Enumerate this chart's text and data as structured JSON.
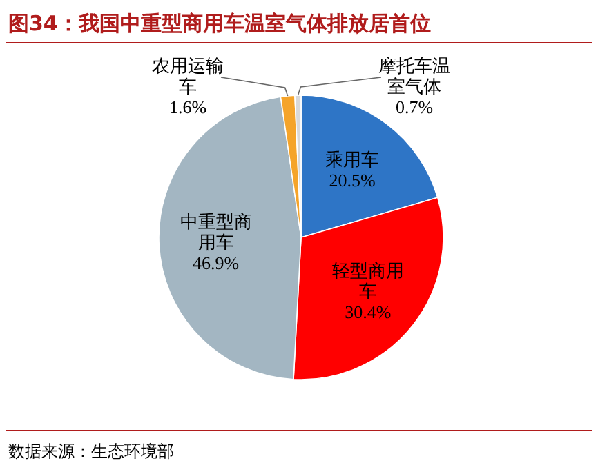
{
  "chart_data": {
    "type": "pie",
    "title": "图34：我国中重型商用车温室气体排放居首位",
    "categories": [
      "乘用车",
      "轻型商用车",
      "中重型商用车",
      "农用运输车",
      "摩托车温室气体"
    ],
    "values": [
      20.5,
      30.4,
      46.9,
      1.6,
      0.7
    ],
    "value_labels": [
      "20.5%",
      "30.4%",
      "46.9%",
      "1.6%",
      "0.7%"
    ],
    "colors": [
      "#2e75c6",
      "#ff0000",
      "#a3b6c2",
      "#f5a42a",
      "#d9d9d9"
    ],
    "annotations": [
      "数据来源：生态环境部"
    ]
  }
}
